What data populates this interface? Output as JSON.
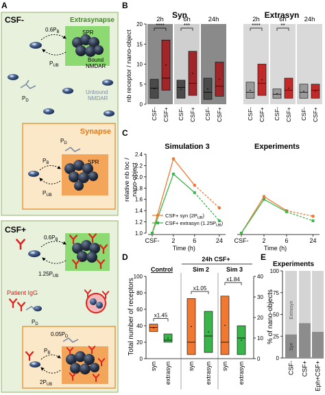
{
  "panelA": {
    "label": "A",
    "csf_minus": {
      "title": "CSF-",
      "extrasynapse_label": "Extrasynapse",
      "spr": "SPR",
      "bound": "Bound",
      "nmdar": "NMDAR",
      "rate_b": "0.6P",
      "rate_b_sub": "B",
      "rate_ub": "P",
      "rate_ub_sub": "UB",
      "pd": "P",
      "pd_sub": "D",
      "unbound": "Unbound",
      "unbound_nmdar": "NMDAR",
      "synapse_label": "Synapse",
      "syn_pd": "P",
      "syn_pd_sub": "D",
      "syn_pb": "P",
      "syn_pb_sub": "B",
      "syn_spr": "SPR",
      "syn_pub": "P",
      "syn_pub_sub": "UB"
    },
    "csf_plus": {
      "title": "CSF+",
      "rate_b": "0.6P",
      "rate_b_sub": "B",
      "rate_ub": "1.25P",
      "rate_ub_sub": "UB",
      "igg": "Patient IgG",
      "pd": "P",
      "pd_sub": "D",
      "syn_pd": "0.05P",
      "syn_pd_sub": "D",
      "syn_pb": "P",
      "syn_pb_sub": "B",
      "syn_pub": "2P",
      "syn_pub_sub": "UB"
    }
  },
  "panelB": {
    "label": "B",
    "ylabel": "nb receptor / nano-object",
    "ticks": [
      "0",
      "5",
      "10",
      "15",
      "20"
    ],
    "syn_title": "Syn",
    "extrasyn_title": "Extrasyn",
    "timepoints": [
      "2h",
      "6h",
      "24h"
    ],
    "xcats": [
      "CSF-",
      "CSF+"
    ],
    "syn_sig": [
      "****",
      "***"
    ],
    "extrasyn_sig": [
      "****",
      "**"
    ]
  },
  "panelC": {
    "label": "C",
    "ylabel_line1": "relative nb loc /",
    "ylabel_line2": "nano-object",
    "sim_title": "Simulation 3",
    "exp_title": "Experiments",
    "yticks": [
      "1.0",
      "1.2",
      "1.4",
      "1.6",
      "1.8",
      "2.0",
      "2.2",
      "2.4"
    ],
    "xticks": [
      "CSF-",
      "2",
      "6",
      "24"
    ],
    "xlabel": "Time (h)",
    "legend_syn": "CSF+ syn (2P",
    "legend_syn_sub": "UB",
    "legend_ext": "CSF+ extrasyn (1.25P",
    "legend_ext_sub": "UB",
    "colors": {
      "syn": "#f07830",
      "extrasyn": "#39b54a"
    }
  },
  "panelD": {
    "label": "D",
    "ylabel": "Total number of receptors",
    "left_ticks": [
      "0",
      "20",
      "40",
      "60",
      "80",
      "100"
    ],
    "right_ticks": [
      "0",
      "10",
      "20",
      "30",
      "40"
    ],
    "control": "Control",
    "header": "24h CSF+",
    "sim2": "Sim 2",
    "sim3": "Sim 3",
    "fold_control": "x1.45",
    "fold_sim2": "x1.05",
    "fold_sim3": "x1.84",
    "xcats": [
      "syn",
      "extrasyn",
      "syn",
      "extrasyn",
      "syn",
      "extrasyn"
    ]
  },
  "panelE": {
    "label": "E",
    "title": "Experiments",
    "ylabel": "% of nano-objects",
    "ticks": [
      "0",
      "25",
      "50",
      "75",
      "100"
    ],
    "extrasyn": "Extrasyn",
    "syn": "Syn",
    "xcats": [
      "CSF-",
      "CSF+",
      "Eph+CSF+"
    ]
  },
  "chart_data": [
    {
      "type": "bar",
      "title": "Syn",
      "ylabel": "nb receptor / nano-object",
      "ylim": [
        0,
        20
      ],
      "categories": [
        "2h CSF-",
        "2h CSF+",
        "6h CSF-",
        "6h CSF+",
        "24h CSF-",
        "24h CSF+"
      ],
      "box": [
        {
          "low": 1.5,
          "median": 4,
          "high": 6.2
        },
        {
          "low": 3.5,
          "median": 6.5,
          "high": 16
        },
        {
          "low": 1.5,
          "median": 4.2,
          "high": 6
        },
        {
          "low": 2.2,
          "median": 5.2,
          "high": 13.2
        },
        {
          "low": 1.2,
          "median": 3,
          "high": 6.5
        },
        {
          "low": 2,
          "median": 4.5,
          "high": 10.5
        }
      ],
      "significance": [
        "****",
        "***"
      ]
    },
    {
      "type": "bar",
      "title": "Extrasyn",
      "ylim": [
        0,
        20
      ],
      "categories": [
        "2h CSF-",
        "2h CSF+",
        "6h CSF-",
        "6h CSF+",
        "24h CSF-",
        "24h CSF+"
      ],
      "box": [
        {
          "low": 1.5,
          "median": 3,
          "high": 5.5
        },
        {
          "low": 2.2,
          "median": 5.2,
          "high": 10
        },
        {
          "low": 1.5,
          "median": 2.5,
          "high": 3.8
        },
        {
          "low": 1.5,
          "median": 3.5,
          "high": 6.5
        },
        {
          "low": 1.5,
          "median": 3,
          "high": 5
        },
        {
          "low": 1.5,
          "median": 3.5,
          "high": 5
        }
      ],
      "significance": [
        "****",
        "**"
      ]
    },
    {
      "type": "line",
      "title": "Simulation 3",
      "x": [
        "CSF-",
        "2",
        "6",
        "24"
      ],
      "xlabel": "Time (h)",
      "ylim": [
        1.0,
        2.4
      ],
      "series": [
        {
          "name": "CSF+ syn (2PUB)",
          "values": [
            1.0,
            2.32,
            1.85,
            1.45
          ]
        },
        {
          "name": "CSF+ extrasyn (1.25PUB)",
          "values": [
            1.0,
            2.05,
            1.72,
            1.22
          ]
        }
      ]
    },
    {
      "type": "line",
      "title": "Experiments",
      "x": [
        "CSF-",
        "2",
        "6",
        "24"
      ],
      "xlabel": "Time (h)",
      "ylim": [
        1.0,
        2.4
      ],
      "series": [
        {
          "values": [
            1.0,
            1.65,
            1.4,
            1.3
          ]
        },
        {
          "values": [
            1.0,
            1.6,
            1.38,
            1.22
          ]
        }
      ]
    },
    {
      "type": "bar",
      "ylabel": "Total number of receptors",
      "categories": [
        "Control syn",
        "Control extrasyn",
        "Sim 2 syn",
        "Sim 2 extrasyn",
        "Sim 3 syn",
        "Sim 3 extrasyn"
      ],
      "box": [
        {
          "low": 33,
          "median": 38,
          "high": 42
        },
        {
          "low": 8,
          "median": 9,
          "high": 12
        },
        {
          "low": 5,
          "median": 20,
          "high": 73
        },
        {
          "low": 3,
          "median": 11,
          "high": 23
        },
        {
          "low": 5,
          "median": 20,
          "high": 76
        },
        {
          "low": 2,
          "median": 10,
          "high": 16
        }
      ],
      "ylim_left": [
        0,
        100
      ],
      "ylim_right": [
        0,
        40
      ],
      "fold": [
        "x1.45",
        "x1.05",
        "x1.84"
      ]
    },
    {
      "type": "bar",
      "title": "Experiments",
      "ylabel": "% of nano-objects",
      "ylim": [
        0,
        100
      ],
      "categories": [
        "CSF-",
        "CSF+",
        "Eph+CSF+"
      ],
      "series": [
        {
          "name": "Syn",
          "values": [
            27,
            40,
            30
          ]
        },
        {
          "name": "Extrasyn",
          "values": [
            73,
            60,
            70
          ]
        }
      ]
    }
  ]
}
